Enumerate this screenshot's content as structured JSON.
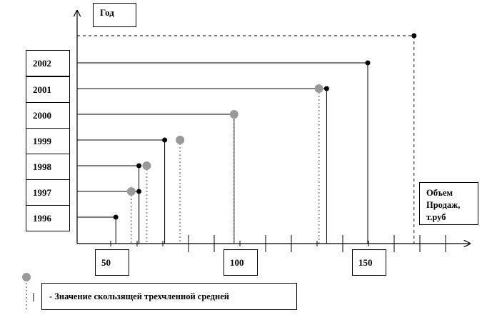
{
  "chart_data": {
    "type": "scatter",
    "title": "",
    "ylabel": "Год",
    "xlabel": "Объем Продаж, т.руб",
    "xlim": [
      25,
      175
    ],
    "x_tick_labels": [
      50,
      100,
      150
    ],
    "x_minor_tick_step": 10,
    "categories": [
      "1996",
      "1997",
      "1998",
      "1999",
      "2000",
      "2001",
      "2002"
    ],
    "series": [
      {
        "marker": "small-black-dot",
        "line_style": "solid",
        "color": "#000000",
        "values": [
          {
            "year": "1996",
            "x": 52
          },
          {
            "year": "1997",
            "x": 61
          },
          {
            "year": "1998",
            "x": 61
          },
          {
            "year": "1999",
            "x": 71
          },
          {
            "year": "2000",
            "x": null
          },
          {
            "year": "2001",
            "x": 134
          },
          {
            "year": "2002",
            "x": 150
          },
          {
            "year": "",
            "x": 168
          }
        ]
      },
      {
        "name": "- Значение скользящей трехчленной средней",
        "marker": "large-gray-dot",
        "line_style": "dotted",
        "color": "#999999",
        "values": [
          {
            "year": "1997",
            "x": 58
          },
          {
            "year": "1998",
            "x": 64
          },
          {
            "year": "1999",
            "x": 77
          },
          {
            "year": "2000",
            "x": 98
          },
          {
            "year": "2001",
            "x": 131
          }
        ]
      }
    ],
    "extra_lines": [
      {
        "note": "2000 solid drop line",
        "x": 98,
        "year": "2000"
      }
    ],
    "grid": false,
    "legend_placement": "bottom-left"
  }
}
